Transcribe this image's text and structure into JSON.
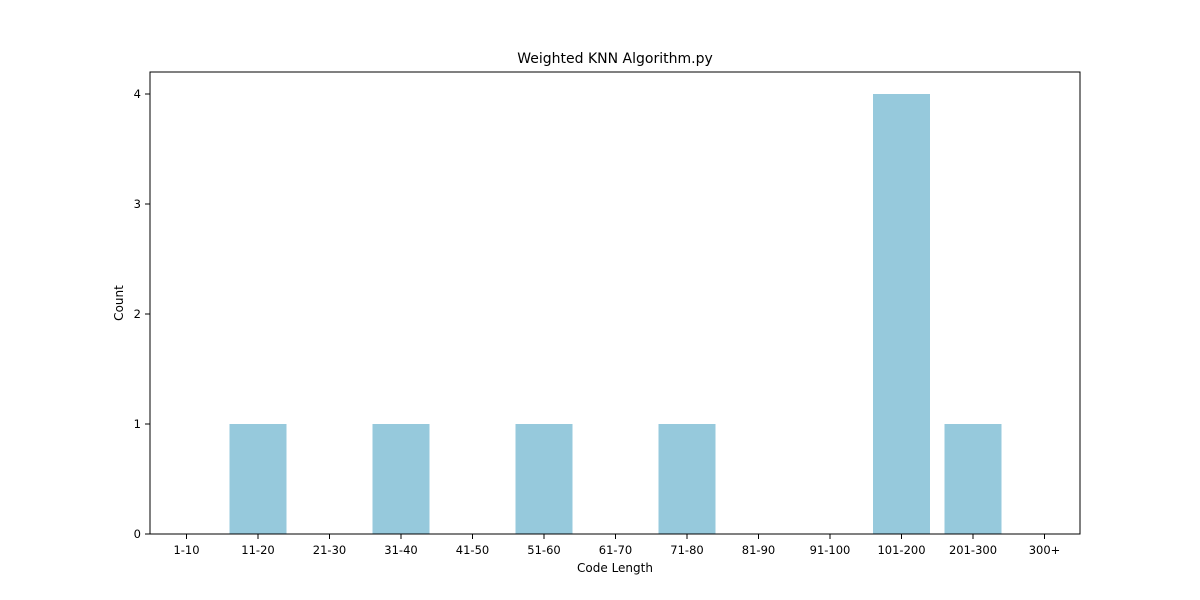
{
  "chart_data": {
    "type": "bar",
    "title": "Weighted KNN Algorithm.py",
    "xlabel": "Code Length",
    "ylabel": "Count",
    "categories": [
      "1-10",
      "11-20",
      "21-30",
      "31-40",
      "41-50",
      "51-60",
      "61-70",
      "71-80",
      "81-90",
      "91-100",
      "101-200",
      "201-300",
      "300+"
    ],
    "values": [
      0,
      1,
      0,
      1,
      0,
      1,
      0,
      1,
      0,
      0,
      4,
      1,
      0
    ],
    "yticks": [
      0,
      1,
      2,
      3,
      4
    ],
    "ylim": [
      0,
      4.2
    ],
    "grid": false,
    "bar_color": "#96c9dc"
  }
}
